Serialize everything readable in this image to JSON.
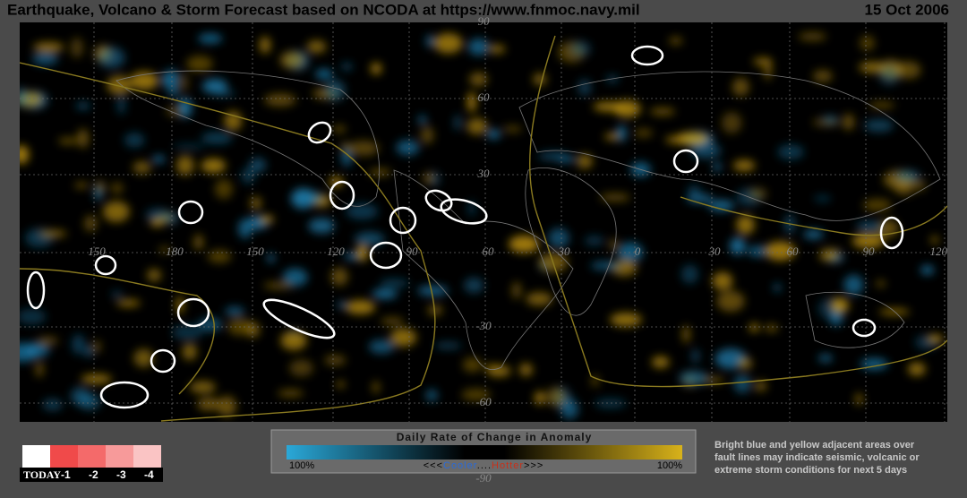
{
  "header": {
    "title": "Earthquake, Volcano & Storm Forecast based on NCODA at https://www.fnmoc.navy.mil",
    "date": "15 Oct 2006"
  },
  "map": {
    "lat_labels": [
      "90",
      "60",
      "30",
      "-30",
      "-60",
      "-90"
    ],
    "lon_labels": [
      "150",
      "180",
      "150",
      "120",
      "90",
      "60",
      "30",
      "0",
      "30",
      "60",
      "90",
      "120"
    ]
  },
  "legend": {
    "title": "Daily Rate of Change in Anomaly",
    "left": "100%",
    "cooler_prefix": "<<<",
    "cooler": "Cooler",
    "dots": "....",
    "hotter": "Hotter",
    "hotter_suffix": ">>>",
    "right": "100%"
  },
  "note": [
    "Bright blue and yellow adjacent areas over",
    "fault lines may indicate seismic, volcanic or",
    "extreme storm conditions  for next 5 days"
  ],
  "scale": {
    "today": "TODAY",
    "labels": [
      "-1",
      "-2",
      "-3",
      "-4"
    ]
  }
}
